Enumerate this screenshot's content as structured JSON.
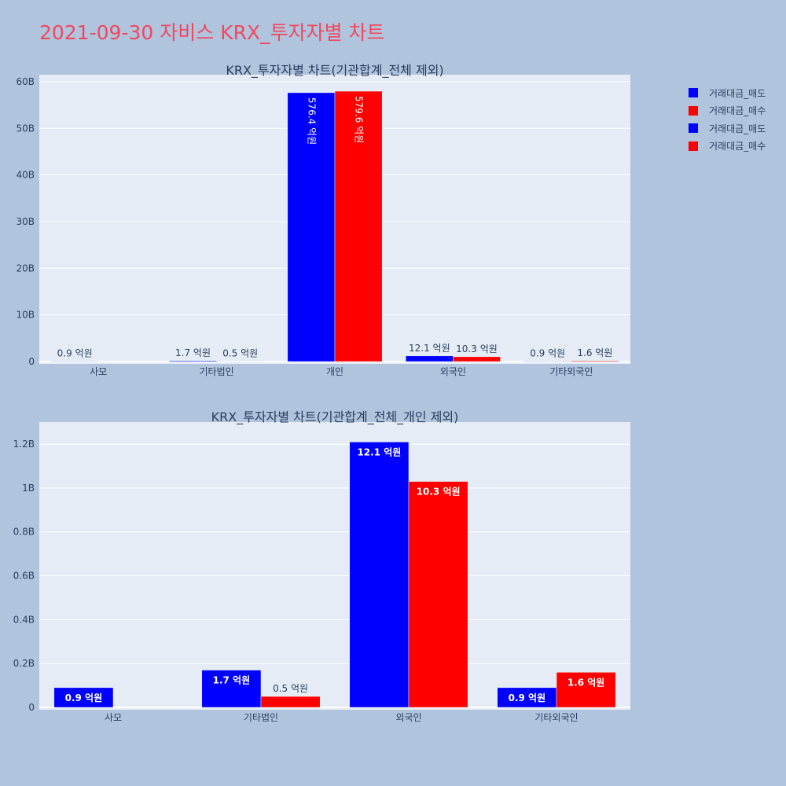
{
  "page_title": "2021-09-30 자비스 KRX_투자자별 차트",
  "colors": {
    "sell": "#0000ff",
    "buy": "#ff0000",
    "plot_bg": "#e5ecf6",
    "page_bg": "#b0c4de",
    "title": "#f0485e"
  },
  "legend": [
    {
      "label": "거래대금_매도",
      "color": "#0000ff"
    },
    {
      "label": "거래대금_매수",
      "color": "#ff0000"
    },
    {
      "label": "거래대금_매도",
      "color": "#0000ff"
    },
    {
      "label": "거래대금_매수",
      "color": "#ff0000"
    }
  ],
  "chart_data": [
    {
      "type": "bar",
      "title": "KRX_투자자별 차트(기관합계_전체 제외)",
      "categories": [
        "사모",
        "기타법인",
        "개인",
        "외국인",
        "기타외국인"
      ],
      "series": [
        {
          "name": "거래대금_매도",
          "values": [
            90000000,
            170000000,
            57640000000,
            1210000000,
            90000000
          ],
          "labels": [
            "0.9 억원",
            "1.7 억원",
            "576.4 억원",
            "12.1 억원",
            "0.9 억원"
          ]
        },
        {
          "name": "거래대금_매수",
          "values": [
            0,
            50000000,
            57960000000,
            1030000000,
            160000000
          ],
          "labels": [
            "",
            "0.5 억원",
            "579.6 억원",
            "10.3 억원",
            "1.6 억원"
          ]
        }
      ],
      "ylim": [
        0,
        61000000000
      ],
      "yticks": [
        0,
        10000000000,
        20000000000,
        30000000000,
        40000000000,
        50000000000,
        60000000000
      ],
      "ytick_labels": [
        "0",
        "10B",
        "20B",
        "30B",
        "40B",
        "50B",
        "60B"
      ]
    },
    {
      "type": "bar",
      "title": "KRX_투자자별 차트(기관합계_전체_개인 제외)",
      "categories": [
        "사모",
        "기타법인",
        "외국인",
        "기타외국인"
      ],
      "series": [
        {
          "name": "거래대금_매도",
          "values": [
            90000000,
            170000000,
            1210000000,
            90000000
          ],
          "labels": [
            "0.9 억원",
            "1.7 억원",
            "12.1 억원",
            "0.9 억원"
          ]
        },
        {
          "name": "거래대금_매수",
          "values": [
            0,
            50000000,
            1030000000,
            160000000
          ],
          "labels": [
            "",
            "0.5 억원",
            "10.3 억원",
            "1.6 억원"
          ]
        }
      ],
      "ylim": [
        0,
        1290000000
      ],
      "yticks": [
        0,
        200000000,
        400000000,
        600000000,
        800000000,
        1000000000,
        1200000000
      ],
      "ytick_labels": [
        "0",
        "0.2B",
        "0.4B",
        "0.6B",
        "0.8B",
        "1B",
        "1.2B"
      ]
    }
  ]
}
